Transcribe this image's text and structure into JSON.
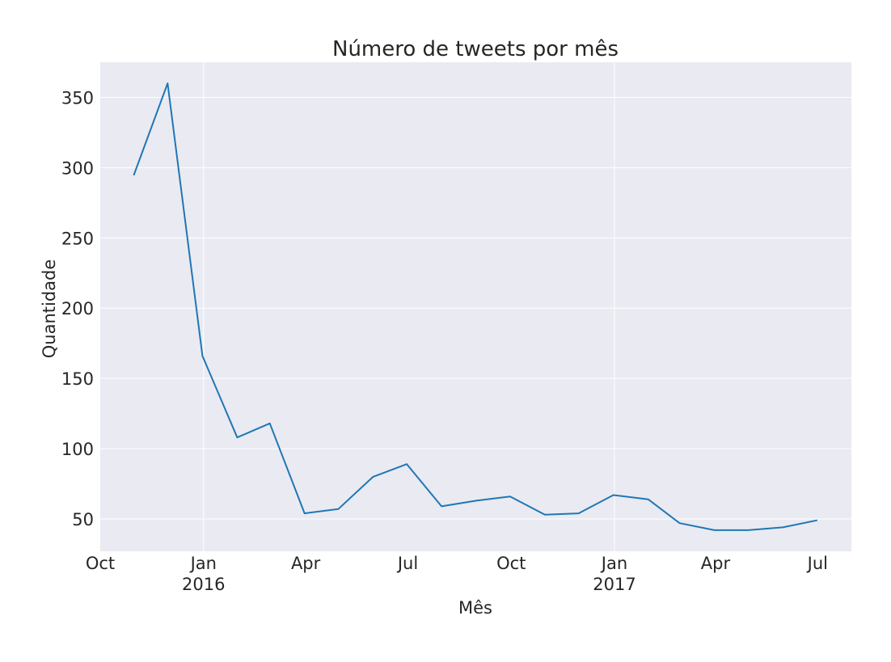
{
  "chart_data": {
    "type": "line",
    "title": "Número de tweets por mês",
    "xlabel": "Mês",
    "ylabel": "Quantidade",
    "grid": true,
    "xlim": [
      "2015-10-01",
      "2017-07-31"
    ],
    "ylim": [
      27,
      375
    ],
    "x_ticks": [
      {
        "date": "2015-10-01",
        "label": "Oct",
        "year_label": ""
      },
      {
        "date": "2016-01-01",
        "label": "Jan",
        "year_label": "2016"
      },
      {
        "date": "2016-04-01",
        "label": "Apr",
        "year_label": ""
      },
      {
        "date": "2016-07-01",
        "label": "Jul",
        "year_label": ""
      },
      {
        "date": "2016-10-01",
        "label": "Oct",
        "year_label": ""
      },
      {
        "date": "2017-01-01",
        "label": "Jan",
        "year_label": "2017"
      },
      {
        "date": "2017-04-01",
        "label": "Apr",
        "year_label": ""
      },
      {
        "date": "2017-07-01",
        "label": "Jul",
        "year_label": ""
      }
    ],
    "y_ticks": [
      50,
      100,
      150,
      200,
      250,
      300,
      350
    ],
    "series": [
      {
        "color": "#1f77b4",
        "x": [
          "2015-10-31",
          "2015-11-30",
          "2015-12-31",
          "2016-01-31",
          "2016-02-29",
          "2016-03-31",
          "2016-04-30",
          "2016-05-31",
          "2016-06-30",
          "2016-07-31",
          "2016-08-31",
          "2016-09-30",
          "2016-10-31",
          "2016-11-30",
          "2016-12-31",
          "2017-01-31",
          "2017-02-28",
          "2017-03-31",
          "2017-04-30",
          "2017-05-31",
          "2017-06-30"
        ],
        "values": [
          295,
          360,
          166,
          108,
          118,
          54,
          57,
          80,
          89,
          59,
          63,
          66,
          53,
          54,
          67,
          64,
          47,
          42,
          42,
          44,
          49
        ]
      }
    ],
    "colors": {
      "plot_background": "#eaeaf2",
      "grid": "#ffffff",
      "line": "#1f77b4"
    }
  }
}
